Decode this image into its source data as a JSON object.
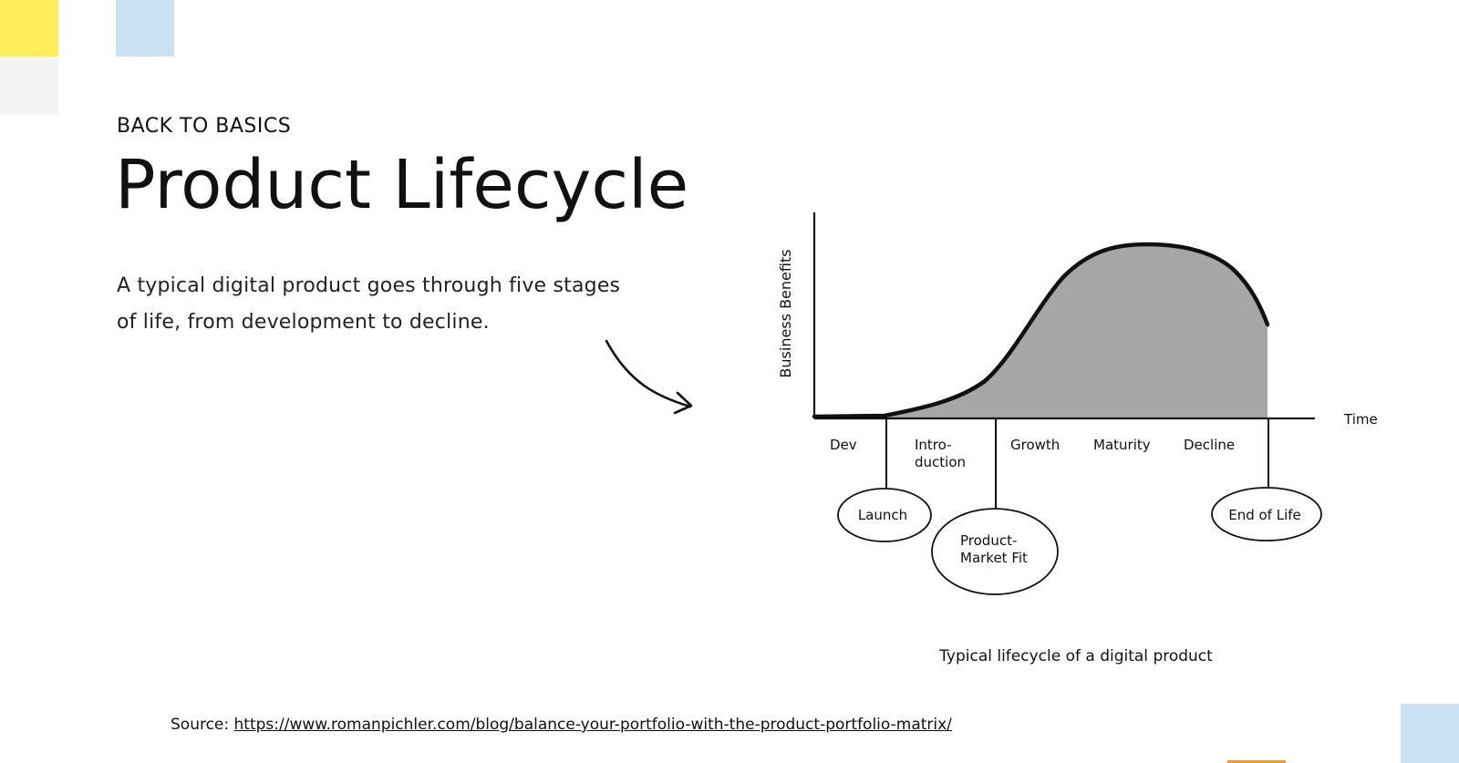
{
  "colors": {
    "yellow_accent": "#fdee5a",
    "grey_accent": "#f3f4f3",
    "blue_accent": "#c9e1f2",
    "orange_accent": "#f0a020",
    "curve_fill": "#a6a6a6",
    "ink": "#111111"
  },
  "slide": {
    "kicker": "BACK TO BASICS",
    "title": "Product Lifecycle",
    "lead": "A typical digital product goes through five stages of life, from development to decline."
  },
  "diagram": {
    "y_axis_label": "Business Benefits",
    "x_axis_label": "Time",
    "stages": [
      {
        "line1": "Dev",
        "line2": ""
      },
      {
        "line1": "Intro-",
        "line2": "duction"
      },
      {
        "line1": "Growth",
        "line2": ""
      },
      {
        "line1": "Maturity",
        "line2": ""
      },
      {
        "line1": "Decline",
        "line2": ""
      }
    ],
    "milestones": [
      {
        "line1": "Launch",
        "line2": ""
      },
      {
        "line1": "Product-",
        "line2": "Market Fit"
      },
      {
        "line1": "End of Life",
        "line2": ""
      }
    ],
    "caption": "Typical lifecycle of a digital product"
  },
  "source": {
    "label": "Source:",
    "url_text": "https://www.romanpichler.com/blog/balance-your-portfolio-with-the-product-portfolio-matrix/"
  }
}
